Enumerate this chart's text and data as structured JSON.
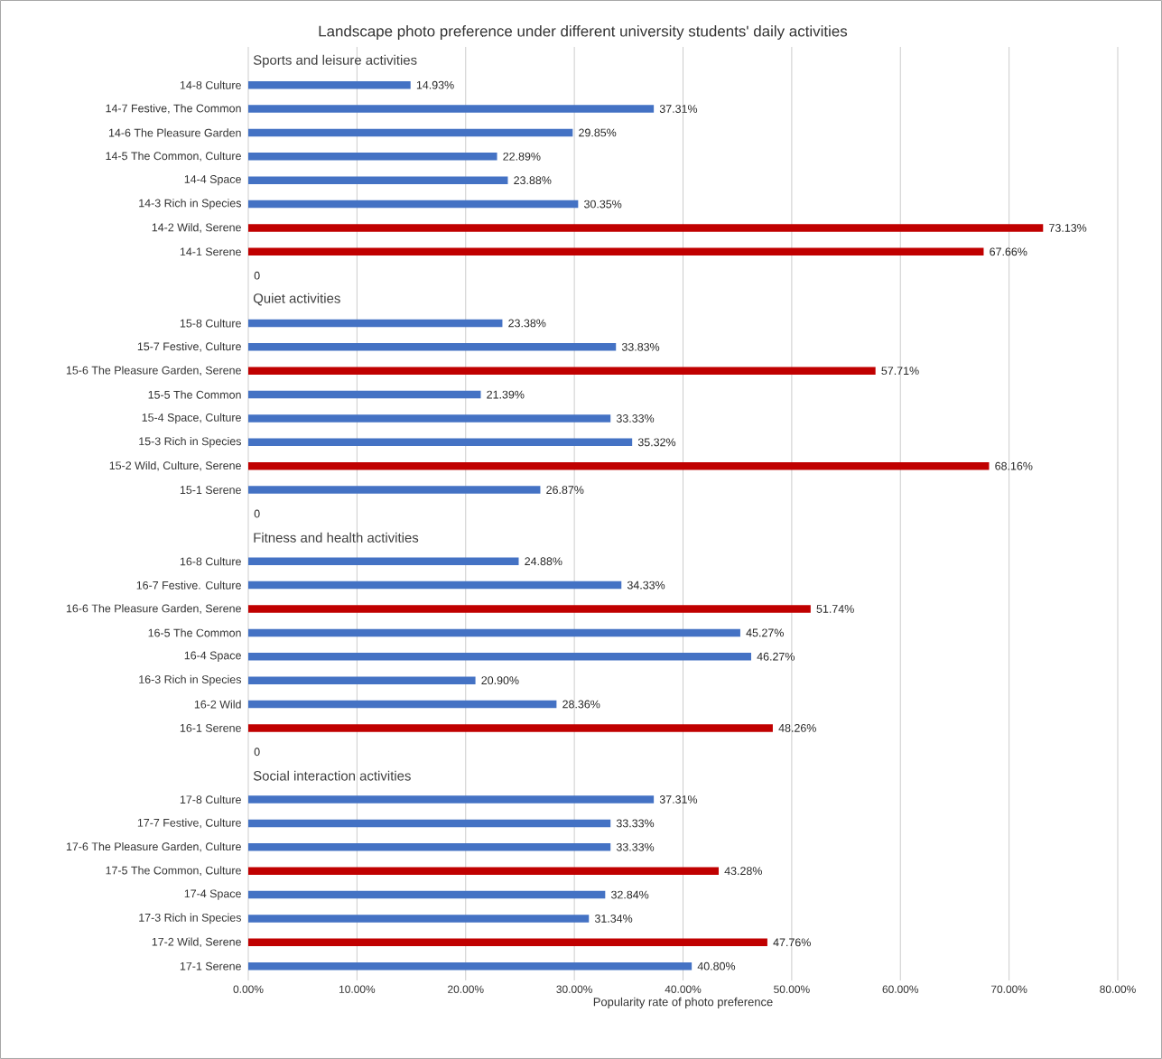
{
  "chart_data": {
    "type": "bar",
    "orientation": "horizontal",
    "title": "Landscape photo preference under different university students' daily activities",
    "xlabel": "Popularity rate of photo preference",
    "annotations": [
      "Sports and leisure activities",
      "Quiet activities",
      "Fitness and health activities",
      "Social interaction activities"
    ],
    "categories": [
      null,
      "14-8 Culture",
      "14-7 Festive, The Common",
      "14-6 The Pleasure Garden",
      "14-5 The Common, Culture",
      "14-4 Space",
      "14-3 Rich in Species",
      "14-2 Wild, Serene",
      "14-1 Serene",
      null,
      null,
      "15-8 Culture",
      "15-7 Festive, Culture",
      "15-6 The Pleasure Garden, Serene",
      "15-5 The Common",
      "15-4 Space, Culture",
      "15-3 Rich in Species",
      "15-2 Wild, Culture, Serene",
      "15-1 Serene",
      null,
      null,
      "16-8 Culture",
      "16-7 Festive. Culture",
      "16-6 The Pleasure Garden, Serene",
      "16-5 The Common",
      "16-4 Space",
      "16-3 Rich in Species",
      "16-2 Wild",
      "16-1 Serene",
      null,
      null,
      "17-8 Culture",
      "17-7 Festive, Culture",
      "17-6 The Pleasure Garden, Culture",
      "17-5 The Common, Culture",
      "17-4 Space",
      "17-3 Rich in Species",
      "17-2 Wild, Serene",
      "17-1 Serene"
    ],
    "values": [
      null,
      14.93,
      37.31,
      29.85,
      22.89,
      23.88,
      30.35,
      73.13,
      67.66,
      0,
      null,
      23.38,
      33.83,
      57.71,
      21.39,
      33.33,
      35.32,
      68.16,
      26.87,
      0,
      null,
      24.88,
      34.33,
      51.74,
      45.27,
      46.27,
      20.9,
      28.36,
      48.26,
      0,
      null,
      37.31,
      33.33,
      33.33,
      43.28,
      32.84,
      31.34,
      47.76,
      40.8
    ],
    "value_labels": [
      null,
      "14.93%",
      "37.31%",
      "29.85%",
      "22.89%",
      "23.88%",
      "30.35%",
      "73.13%",
      "67.66%",
      "0",
      null,
      "23.38%",
      "33.83%",
      "57.71%",
      "21.39%",
      "33.33%",
      "35.32%",
      "68.16%",
      "26.87%",
      "0",
      null,
      "24.88%",
      "34.33%",
      "51.74%",
      "45.27%",
      "46.27%",
      "20.90%",
      "28.36%",
      "48.26%",
      "0",
      null,
      "37.31%",
      "33.33%",
      "33.33%",
      "43.28%",
      "32.84%",
      "31.34%",
      "47.76%",
      "40.80%"
    ],
    "colors": [
      null,
      "#4472c4",
      "#4472c4",
      "#4472c4",
      "#4472c4",
      "#4472c4",
      "#4472c4",
      "#c00000",
      "#c00000",
      "#4472c4",
      null,
      "#4472c4",
      "#4472c4",
      "#c00000",
      "#4472c4",
      "#4472c4",
      "#4472c4",
      "#c00000",
      "#4472c4",
      "#4472c4",
      null,
      "#4472c4",
      "#4472c4",
      "#c00000",
      "#4472c4",
      "#4472c4",
      "#4472c4",
      "#4472c4",
      "#c00000",
      "#4472c4",
      null,
      "#4472c4",
      "#4472c4",
      "#4472c4",
      "#c00000",
      "#4472c4",
      "#4472c4",
      "#c00000",
      "#4472c4"
    ],
    "xlim": [
      0,
      80
    ],
    "xticks": [
      {
        "value": 0,
        "label": "0.00%"
      },
      {
        "value": 10,
        "label": "10.00%"
      },
      {
        "value": 20,
        "label": "20.00%"
      },
      {
        "value": 30,
        "label": "30.00%"
      },
      {
        "value": 40,
        "label": "40.00%"
      },
      {
        "value": 50,
        "label": "50.00%"
      },
      {
        "value": 60,
        "label": "60.00%"
      },
      {
        "value": 70,
        "label": "70.00%"
      },
      {
        "value": 80,
        "label": "80.00%"
      }
    ],
    "grid": "x"
  }
}
